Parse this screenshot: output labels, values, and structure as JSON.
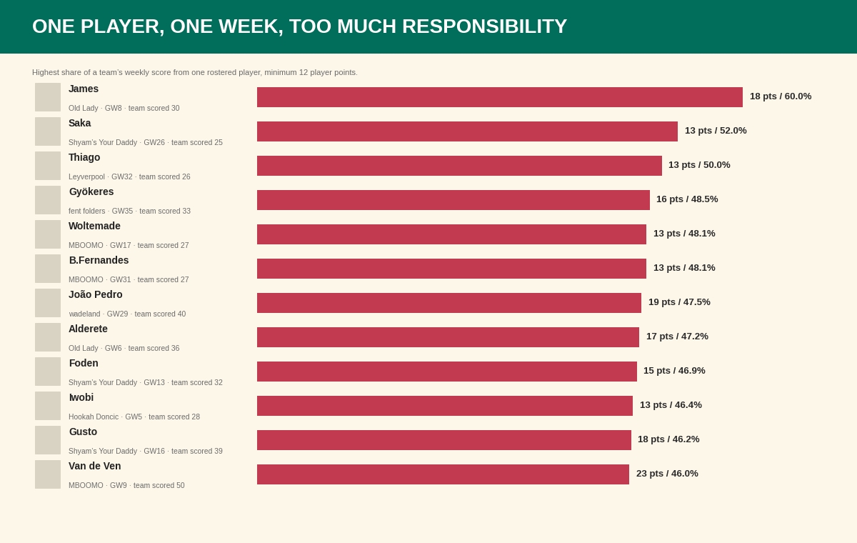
{
  "chart_data": {
    "type": "bar",
    "orientation": "horizontal",
    "title": "ONE PLAYER, ONE WEEK, TOO MUCH RESPONSIBILITY",
    "subtitle": "Highest share of a team’s weekly score from one rostered player, minimum 12 player points.",
    "categories": [
      "James",
      "Saka",
      "Thiago",
      "Gyökeres",
      "Woltemade",
      "B.Fernandes",
      "João Pedro",
      "Alderete",
      "Foden",
      "Iwobi",
      "Gusto",
      "Van de Ven"
    ],
    "details": [
      "Old Lady · GW8 · team scored 30",
      "Shyam’s Your Daddy · GW26 · team scored 25",
      "Leyverpool · GW32 · team scored 26",
      "fent folders · GW35 · team scored 33",
      "MBOOMO · GW17 · team scored 27",
      "MBOOMO · GW31 · team scored 27",
      "wadeland · GW29 · team scored 40",
      "Old Lady · GW6 · team scored 36",
      "Shyam’s Your Daddy · GW13 · team scored 32",
      "Hookah Doncic · GW5 · team scored 28",
      "Shyam’s Your Daddy · GW16 · team scored 39",
      "MBOOMO · GW9 · team scored 50"
    ],
    "values": [
      60.0,
      52.0,
      50.0,
      48.5,
      48.1,
      48.1,
      47.5,
      47.2,
      46.9,
      46.4,
      46.2,
      46.0
    ],
    "value_labels": [
      "18 pts / 60.0%",
      "13 pts / 52.0%",
      "13 pts / 50.0%",
      "16 pts / 48.5%",
      "13 pts / 48.1%",
      "13 pts / 48.1%",
      "19 pts / 47.5%",
      "17 pts / 47.2%",
      "15 pts / 46.9%",
      "13 pts / 46.4%",
      "18 pts / 46.2%",
      "23 pts / 46.0%"
    ],
    "data_labels": true,
    "color": "#c13a50",
    "xlim": [
      0,
      60
    ],
    "tick_labels": false,
    "grid": false
  }
}
